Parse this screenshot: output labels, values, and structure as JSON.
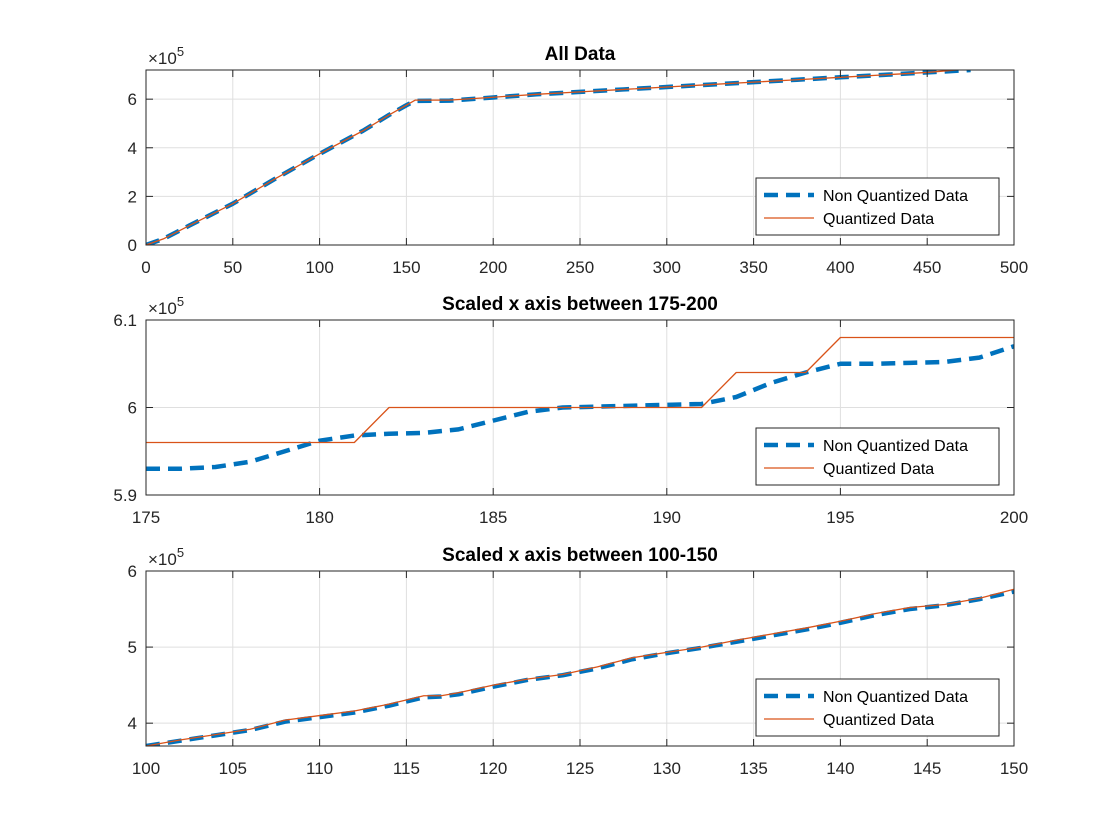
{
  "chart_data": [
    {
      "type": "line",
      "title": "All Data",
      "xlim": [
        0,
        500
      ],
      "ylim": [
        0,
        7.2
      ],
      "y_multiplier": "×10^5",
      "xticks": [
        0,
        50,
        100,
        150,
        200,
        250,
        300,
        350,
        400,
        450,
        500
      ],
      "yticks": [
        0,
        2,
        4,
        6
      ],
      "grid": true,
      "legend_position": "bottom-right",
      "series": [
        {
          "name": "Non Quantized Data",
          "style": "dashed",
          "color": "#0072BD",
          "x": [
            0,
            10,
            25,
            50,
            75,
            100,
            125,
            140,
            150,
            155,
            175,
            200,
            225,
            250,
            275,
            300,
            325,
            350,
            375,
            400,
            425,
            450,
            475
          ],
          "y": [
            0,
            0.25,
            0.8,
            1.7,
            2.75,
            3.75,
            4.7,
            5.35,
            5.75,
            5.93,
            5.94,
            6.07,
            6.2,
            6.3,
            6.4,
            6.5,
            6.6,
            6.7,
            6.8,
            6.9,
            7.0,
            7.1,
            7.2
          ]
        },
        {
          "name": "Quantized Data",
          "style": "solid",
          "color": "#D95319",
          "x": [
            0,
            10,
            25,
            50,
            75,
            100,
            125,
            140,
            150,
            155,
            175,
            200,
            225,
            250,
            275,
            300,
            325,
            350,
            375,
            400,
            425,
            450,
            475
          ],
          "y": [
            0,
            0.25,
            0.8,
            1.7,
            2.75,
            3.75,
            4.7,
            5.35,
            5.75,
            5.96,
            5.96,
            6.08,
            6.2,
            6.3,
            6.4,
            6.5,
            6.6,
            6.7,
            6.8,
            6.9,
            7.0,
            7.1,
            7.25
          ]
        }
      ]
    },
    {
      "type": "line",
      "title": "Scaled x axis between 175-200",
      "xlim": [
        175,
        200
      ],
      "ylim": [
        5.9,
        6.1
      ],
      "y_multiplier": "×10^5",
      "xticks": [
        175,
        180,
        185,
        190,
        195,
        200
      ],
      "yticks": [
        5.9,
        6,
        6.1
      ],
      "ytick_labels": [
        "5.9",
        "6",
        "6.1"
      ],
      "grid": true,
      "legend_position": "bottom-right",
      "series": [
        {
          "name": "Non Quantized Data",
          "style": "dashed",
          "color": "#0072BD",
          "x": [
            175,
            176,
            177,
            178,
            179,
            180,
            181,
            182,
            183,
            184,
            185,
            186,
            187,
            188,
            189,
            190,
            191,
            192,
            193,
            194,
            195,
            196,
            197,
            198,
            199,
            200
          ],
          "y": [
            5.93,
            5.93,
            5.932,
            5.938,
            5.95,
            5.962,
            5.968,
            5.97,
            5.971,
            5.975,
            5.985,
            5.995,
            6.0,
            6.001,
            6.002,
            6.003,
            6.004,
            6.012,
            6.028,
            6.04,
            6.05,
            6.05,
            6.051,
            6.052,
            6.057,
            6.07
          ]
        },
        {
          "name": "Quantized Data",
          "style": "solid",
          "color": "#D95319",
          "x": [
            175,
            181,
            182,
            191,
            192,
            194,
            195,
            200
          ],
          "y": [
            5.96,
            5.96,
            6.0,
            6.0,
            6.04,
            6.04,
            6.08,
            6.08
          ]
        }
      ]
    },
    {
      "type": "line",
      "title": "Scaled x axis between 100-150",
      "xlim": [
        100,
        150
      ],
      "ylim": [
        3.7,
        6.0
      ],
      "y_multiplier": "×10^5",
      "xticks": [
        100,
        105,
        110,
        115,
        120,
        125,
        130,
        135,
        140,
        145,
        150
      ],
      "yticks": [
        4,
        5,
        6
      ],
      "grid": true,
      "legend_position": "bottom-right",
      "series": [
        {
          "name": "Non Quantized Data",
          "style": "dashed",
          "color": "#0072BD",
          "x": [
            100,
            102,
            104,
            106,
            108,
            110,
            112,
            114,
            116,
            117,
            118,
            120,
            122,
            124,
            126,
            128,
            130,
            132,
            134,
            136,
            138,
            140,
            142,
            144,
            146,
            148,
            150
          ],
          "y": [
            3.7,
            3.77,
            3.84,
            3.91,
            4.02,
            4.08,
            4.14,
            4.23,
            4.34,
            4.35,
            4.38,
            4.48,
            4.57,
            4.63,
            4.72,
            4.84,
            4.92,
            4.99,
            5.07,
            5.15,
            5.23,
            5.32,
            5.42,
            5.5,
            5.55,
            5.63,
            5.73
          ]
        },
        {
          "name": "Quantized Data",
          "style": "solid",
          "color": "#D95319",
          "x": [
            100,
            102,
            104,
            106,
            108,
            110,
            112,
            114,
            116,
            117,
            118,
            120,
            122,
            124,
            126,
            128,
            130,
            132,
            134,
            136,
            138,
            140,
            142,
            144,
            146,
            148,
            150
          ],
          "y": [
            3.7,
            3.78,
            3.85,
            3.92,
            4.04,
            4.1,
            4.16,
            4.25,
            4.36,
            4.36,
            4.4,
            4.5,
            4.58,
            4.64,
            4.74,
            4.86,
            4.93,
            5.0,
            5.09,
            5.17,
            5.25,
            5.34,
            5.44,
            5.52,
            5.56,
            5.64,
            5.76
          ]
        }
      ]
    }
  ],
  "legend": {
    "entries": [
      "Non Quantized Data",
      "Quantized Data"
    ]
  },
  "exponent_label": {
    "prefix": "×10",
    "power": "5"
  }
}
